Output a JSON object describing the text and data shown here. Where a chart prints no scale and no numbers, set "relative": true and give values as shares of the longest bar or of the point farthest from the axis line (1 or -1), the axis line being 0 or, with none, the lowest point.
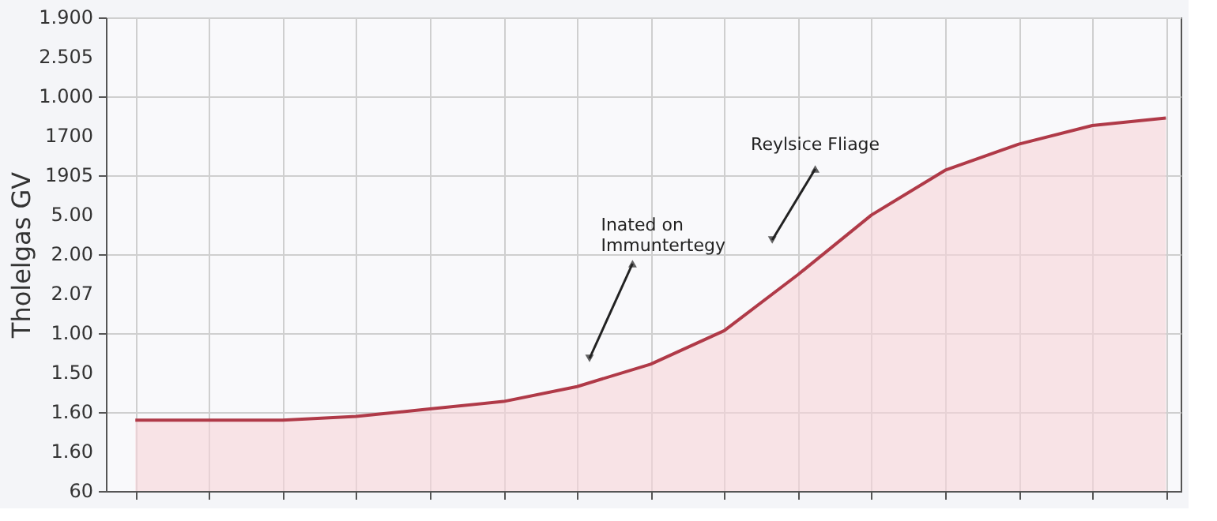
{
  "chart_data": {
    "type": "area",
    "ylabel": "Tholelgas GV",
    "relative": true,
    "categories": [
      null,
      null,
      null,
      null,
      null,
      null,
      null,
      null,
      null,
      null,
      null,
      null,
      null,
      null,
      null
    ],
    "series": [
      {
        "color": "#b03a48",
        "values": [
          0.19,
          0.19,
          0.19,
          0.2,
          0.22,
          0.24,
          0.28,
          0.34,
          0.43,
          0.58,
          0.74,
          0.86,
          0.93,
          0.98,
          1
        ]
      }
    ],
    "annotations": [
      "Inated on\nImmuntertegy",
      "Reylsice Fliage",
      "1.900",
      "2.505",
      "1.000",
      "1700",
      "1905",
      "5.00",
      "2.00",
      "2.07",
      "1.00",
      "1.50",
      "1.60",
      "1.60",
      "60"
    ],
    "grid": true,
    "tick_labels": false
  }
}
